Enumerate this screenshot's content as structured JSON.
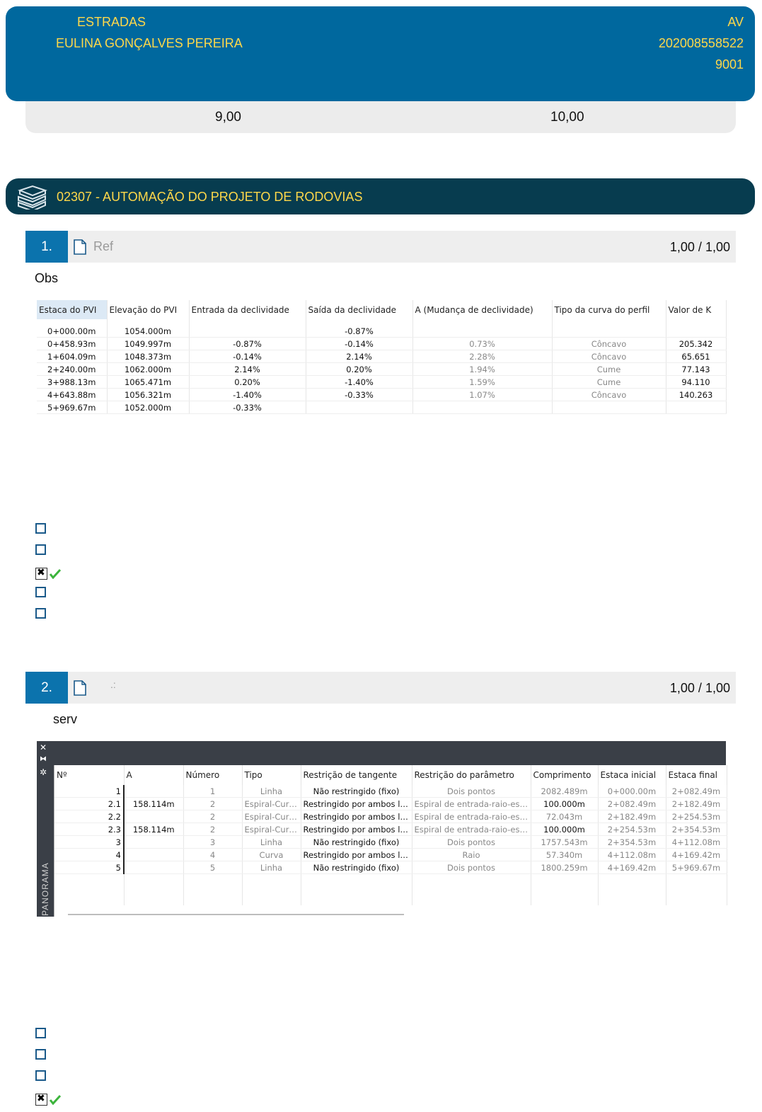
{
  "header": {
    "subject": "ESTRADAS",
    "student": "EULINA GONÇALVES PEREIRA",
    "type": "AV",
    "registration": "202008558522",
    "class_code": "9001"
  },
  "grades": {
    "grade": "9,00",
    "max": "10,00"
  },
  "course": {
    "title": "02307 - AUTOMAÇÃO DO PROJETO DE RODOVIAS",
    "icon": "books-icon"
  },
  "questions": [
    {
      "number": "1.",
      "ref": "Ref",
      "score": "1,00",
      "score_sep": "/",
      "score_max": "1,00",
      "obs": "Obs",
      "table": {
        "headers": [
          "Estaca do PVI",
          "Elevação do PVI",
          "Entrada da declividade",
          "Saída da declividade",
          "A (Mudança de declividade)",
          "Tipo da curva do perfil",
          "Valor de K"
        ],
        "rows": [
          [
            "0+000.00m",
            "1054.000m",
            "",
            "-0.87%",
            "",
            "",
            ""
          ],
          [
            "0+458.93m",
            "1049.997m",
            "-0.87%",
            "-0.14%",
            "0.73%",
            "Côncavo",
            "205.342"
          ],
          [
            "1+604.09m",
            "1048.373m",
            "-0.14%",
            "2.14%",
            "2.28%",
            "Côncavo",
            "65.651"
          ],
          [
            "2+240.00m",
            "1062.000m",
            "2.14%",
            "0.20%",
            "1.94%",
            "Cume",
            "77.143"
          ],
          [
            "3+988.13m",
            "1065.471m",
            "0.20%",
            "-1.40%",
            "1.59%",
            "Cume",
            "94.110"
          ],
          [
            "4+643.88m",
            "1056.321m",
            "-1.40%",
            "-0.33%",
            "1.07%",
            "Côncavo",
            "140.263"
          ],
          [
            "5+969.67m",
            "1052.000m",
            "-0.33%",
            "",
            "",
            "",
            ""
          ]
        ]
      },
      "options_checked": [
        false,
        false,
        true,
        false,
        false
      ],
      "correct_index": 2
    },
    {
      "number": "2.",
      "ref": ".:",
      "score": "1,00",
      "score_sep": "/",
      "score_max": "1,00",
      "obs": "serv",
      "panel": {
        "label": "PANORAMA",
        "icons": [
          "close-icon",
          "pin-icon",
          "settings-icon"
        ],
        "headers": [
          "Nº",
          "A",
          "Número",
          "Tipo",
          "Restrição de tangente",
          "Restrição do parâmetro",
          "Comprimento",
          "Estaca inicial",
          "Estaca final"
        ],
        "rows": [
          [
            "1",
            "",
            "1",
            "Linha",
            "Não restringido (fixo)",
            "Dois pontos",
            "2082.489m",
            "0+000.00m",
            "2+082.49m"
          ],
          [
            "2.1",
            "158.114m",
            "2",
            "Espiral-Curv…",
            "Restringido por ambos lad…",
            "Espiral de entrada-raio-espir…",
            "100.000m",
            "2+082.49m",
            "2+182.49m"
          ],
          [
            "2.2",
            "",
            "2",
            "Espiral-Curv…",
            "Restringido por ambos lad…",
            "Espiral de entrada-raio-espir…",
            "72.043m",
            "2+182.49m",
            "2+254.53m"
          ],
          [
            "2.3",
            "158.114m",
            "2",
            "Espiral-Curv…",
            "Restringido por ambos lad…",
            "Espiral de entrada-raio-espir…",
            "100.000m",
            "2+254.53m",
            "2+354.53m"
          ],
          [
            "3",
            "",
            "3",
            "Linha",
            "Não restringido (fixo)",
            "Dois pontos",
            "1757.543m",
            "2+354.53m",
            "4+112.08m"
          ],
          [
            "4",
            "",
            "4",
            "Curva",
            "Restringido por ambos lad…",
            "Raio",
            "57.340m",
            "4+112.08m",
            "4+169.42m"
          ],
          [
            "5",
            "",
            "5",
            "Linha",
            "Não restringido (fixo)",
            "Dois pontos",
            "1800.259m",
            "4+169.42m",
            "5+969.67m"
          ]
        ]
      },
      "options_checked": [
        false,
        false,
        false,
        true
      ],
      "correct_index": 3
    }
  ],
  "colors": {
    "header_bg": "#00689e",
    "course_bg": "#073c4f",
    "accent_text": "#ffd84a",
    "question_number_bg": "#0b73ad",
    "correct_check": "#3cb43c"
  }
}
